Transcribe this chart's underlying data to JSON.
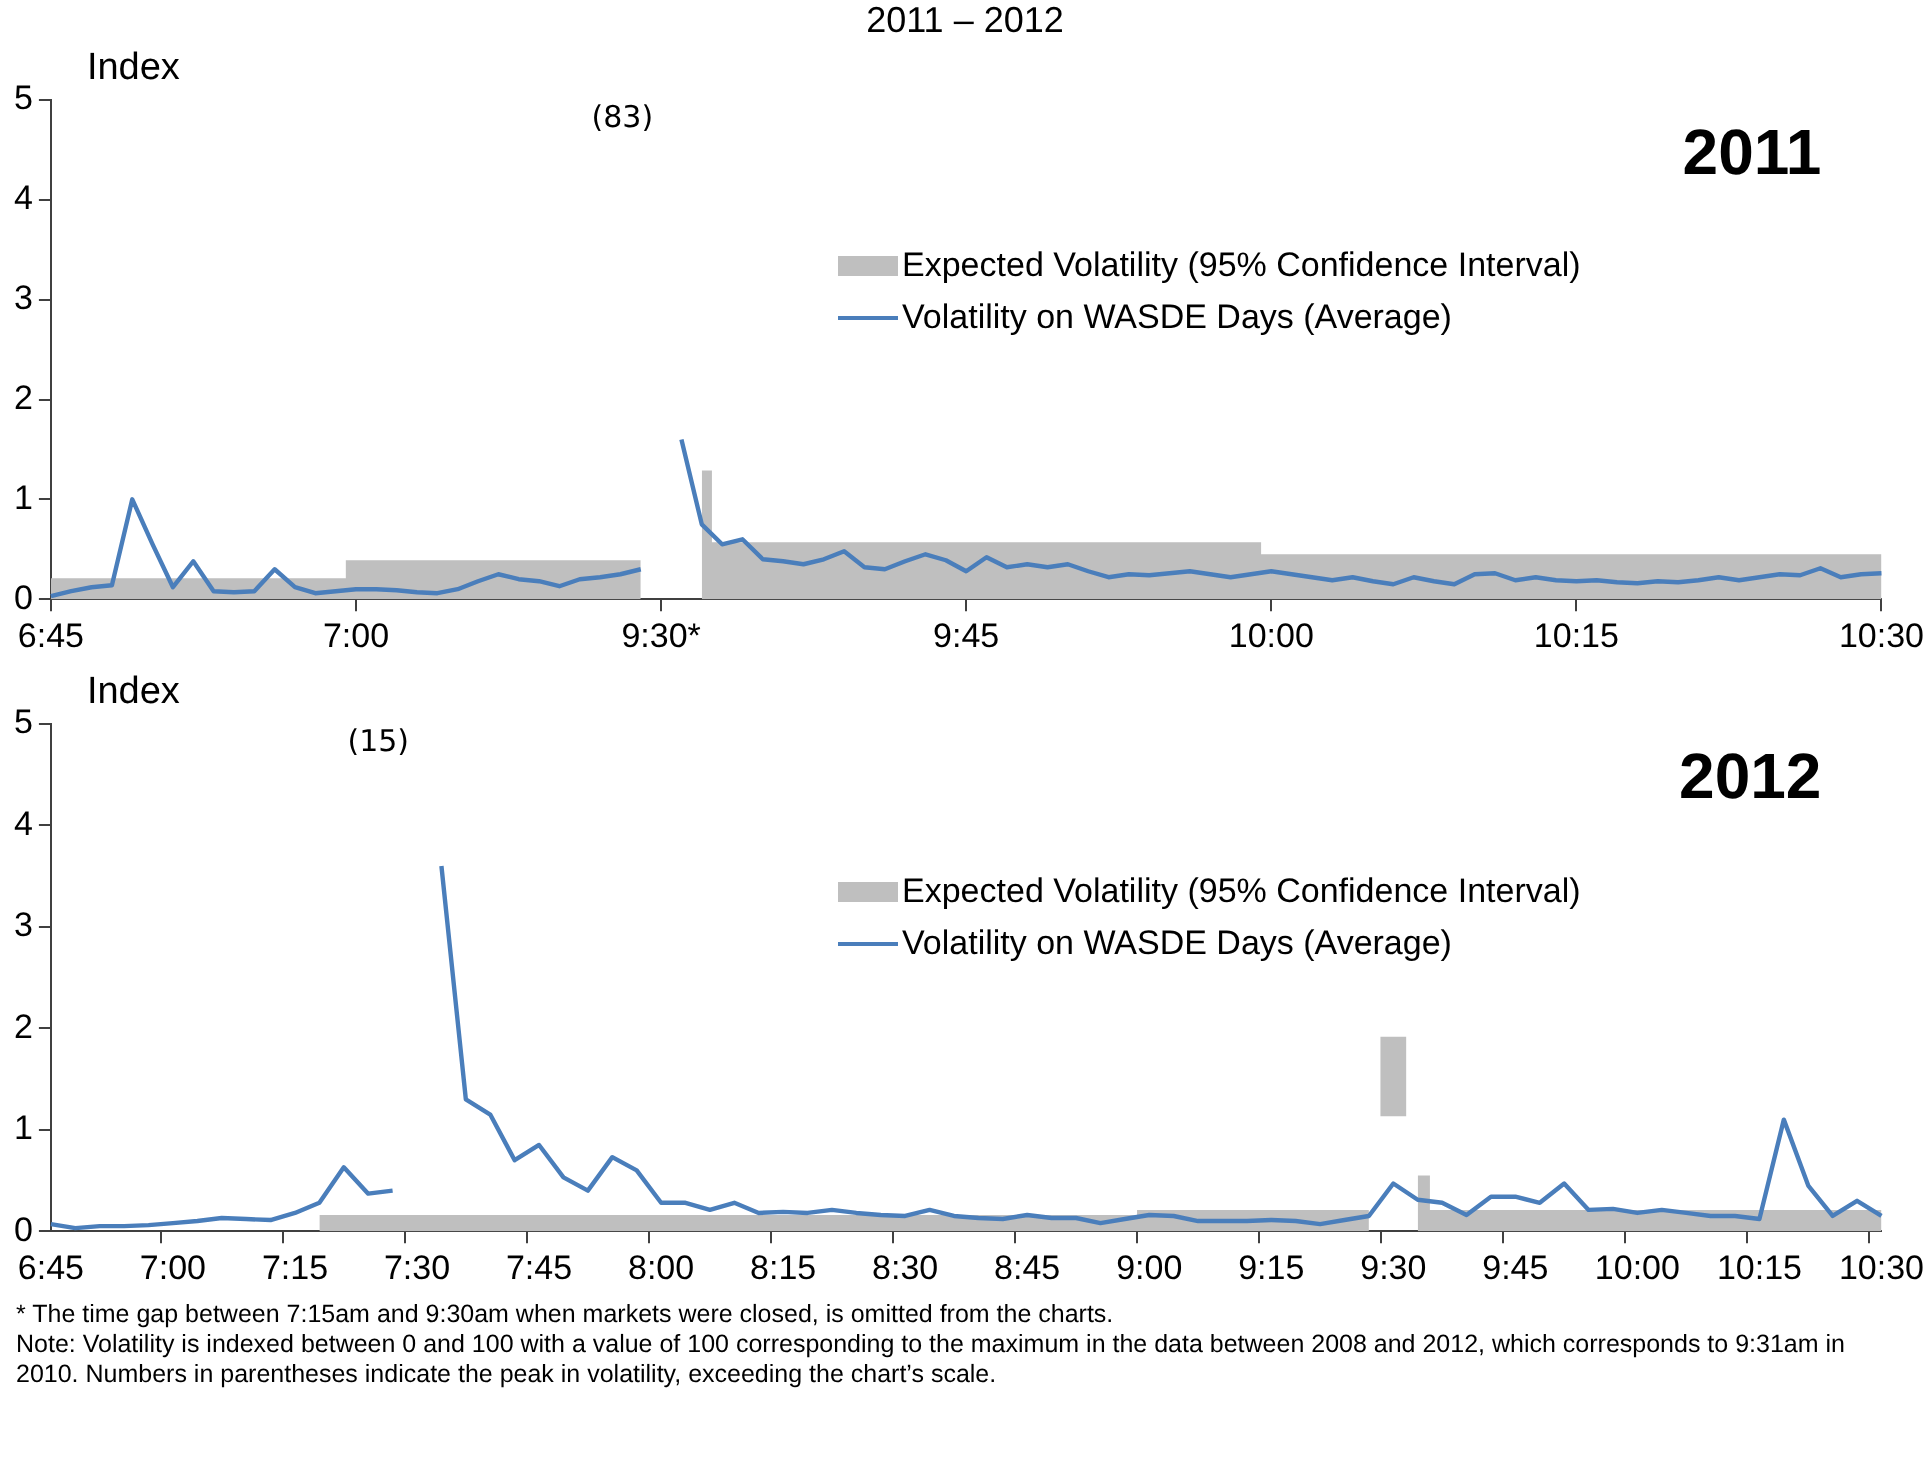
{
  "chart_data": [
    {
      "type": "line",
      "title": "2011 – 2012",
      "subtitle": "2011",
      "ylabel": "Index",
      "categories": [
        "6:45",
        null,
        null,
        null,
        null,
        null,
        null,
        null,
        null,
        null,
        null,
        null,
        null,
        null,
        null,
        "7:00",
        null,
        null,
        null,
        null,
        null,
        null,
        null,
        null,
        null,
        null,
        null,
        null,
        null,
        null,
        "9:30*",
        null,
        null,
        null,
        null,
        null,
        null,
        null,
        null,
        null,
        null,
        null,
        null,
        null,
        null,
        "9:45",
        null,
        null,
        null,
        null,
        null,
        null,
        null,
        null,
        null,
        null,
        null,
        null,
        null,
        null,
        "10:00",
        null,
        null,
        null,
        null,
        null,
        null,
        null,
        null,
        null,
        null,
        null,
        null,
        null,
        null,
        "10:15",
        null,
        null,
        null,
        null,
        null,
        null,
        null,
        null,
        null,
        null,
        null,
        null,
        null,
        null,
        "10:30"
      ],
      "series": [
        {
          "name": "Expected Volatility (95% Confidence Interval)",
          "type": "area",
          "color": "#bfbfbf",
          "values": [
            0.21,
            0.21,
            0.21,
            0.21,
            0.21,
            0.21,
            0.21,
            0.21,
            0.21,
            0.21,
            0.21,
            0.21,
            0.21,
            0.21,
            0.21,
            0.39,
            0.39,
            0.39,
            0.39,
            0.39,
            0.39,
            0.39,
            0.39,
            0.39,
            0.39,
            0.39,
            0.39,
            0.39,
            0.39,
            0.39,
            null,
            null,
            1.29,
            0.57,
            0.57,
            0.57,
            0.57,
            0.57,
            0.57,
            0.57,
            0.57,
            0.57,
            0.57,
            0.57,
            0.57,
            0.57,
            0.57,
            0.57,
            0.57,
            0.57,
            0.57,
            0.57,
            0.57,
            0.57,
            0.57,
            0.57,
            0.57,
            0.57,
            0.57,
            0.57,
            0.45,
            0.45,
            0.45,
            0.45,
            0.45,
            0.45,
            0.45,
            0.45,
            0.45,
            0.45,
            0.45,
            0.45,
            0.45,
            0.45,
            0.45,
            0.45,
            0.45,
            0.45,
            0.45,
            0.45,
            0.45,
            0.45,
            0.45,
            0.45,
            0.45,
            0.45,
            0.45,
            0.45,
            0.45,
            0.45,
            0.45
          ]
        },
        {
          "name": "Volatility on WASDE Days (Average)",
          "color": "#4a7ebb",
          "values": [
            0.03,
            0.08,
            0.12,
            0.14,
            1.0,
            0.55,
            0.12,
            0.38,
            0.08,
            0.07,
            0.08,
            0.3,
            0.12,
            0.06,
            0.08,
            0.1,
            0.1,
            0.09,
            0.07,
            0.06,
            0.1,
            0.18,
            0.25,
            0.2,
            0.18,
            0.13,
            0.2,
            0.22,
            0.25,
            0.3,
            null,
            1.6,
            0.75,
            0.55,
            0.6,
            0.4,
            0.38,
            0.35,
            0.4,
            0.48,
            0.32,
            0.3,
            0.38,
            0.45,
            0.39,
            0.28,
            0.42,
            0.32,
            0.35,
            0.32,
            0.35,
            0.28,
            0.22,
            0.25,
            0.24,
            0.26,
            0.28,
            0.25,
            0.22,
            0.25,
            0.28,
            0.25,
            0.22,
            0.19,
            0.22,
            0.18,
            0.15,
            0.22,
            0.18,
            0.15,
            0.25,
            0.26,
            0.19,
            0.22,
            0.19,
            0.18,
            0.19,
            0.17,
            0.16,
            0.18,
            0.17,
            0.19,
            0.22,
            0.19,
            0.22,
            0.25,
            0.24,
            0.31,
            0.22,
            0.25,
            0.26
          ]
        }
      ],
      "ylim": [
        0,
        5
      ],
      "yticks": [
        0,
        1,
        2,
        3,
        4,
        5
      ],
      "grid": false,
      "legend": "top right",
      "marker": "none",
      "line_style": "solid",
      "annotations": [
        "(83)"
      ]
    },
    {
      "type": "line",
      "subtitle": "2012",
      "ylabel": "Index",
      "categories": [
        "6:45",
        null,
        null,
        null,
        null,
        "7:00",
        null,
        null,
        null,
        null,
        "7:15",
        null,
        null,
        null,
        null,
        "7:30",
        null,
        null,
        null,
        null,
        "7:45",
        null,
        null,
        null,
        null,
        "8:00",
        null,
        null,
        null,
        null,
        "8:15",
        null,
        null,
        null,
        null,
        "8:30",
        null,
        null,
        null,
        null,
        "8:45",
        null,
        null,
        null,
        null,
        "9:00",
        null,
        null,
        null,
        null,
        "9:15",
        null,
        null,
        null,
        null,
        "9:30",
        null,
        null,
        null,
        null,
        "9:45",
        null,
        null,
        null,
        null,
        "10:00",
        null,
        null,
        null,
        null,
        "10:15",
        null,
        null,
        null,
        null,
        "10:30"
      ],
      "series": [
        {
          "name": "Expected Volatility (95% Confidence Interval)",
          "type": "area",
          "color": "#bfbfbf",
          "values": [
            null,
            null,
            null,
            null,
            null,
            null,
            null,
            null,
            null,
            null,
            null,
            0.16,
            0.16,
            0.16,
            0.16,
            0.16,
            0.16,
            0.16,
            0.16,
            0.16,
            0.16,
            0.16,
            0.16,
            0.16,
            0.16,
            0.16,
            0.16,
            0.16,
            0.16,
            0.16,
            0.16,
            0.16,
            0.16,
            0.16,
            0.16,
            0.16,
            0.16,
            0.16,
            0.16,
            0.16,
            0.16,
            0.16,
            0.16,
            0.16,
            0.16,
            0.21,
            0.21,
            0.21,
            0.21,
            0.21,
            0.21,
            0.21,
            0.21,
            0.21,
            0.21,
            null,
            0.55,
            0.21,
            0.21,
            0.21,
            0.21,
            0.21,
            0.21,
            0.21,
            0.21,
            0.21,
            0.21,
            0.21,
            0.21,
            0.21,
            0.21,
            0.21,
            0.21,
            0.21,
            0.21,
            0.21
          ]
        },
        {
          "type": "bar",
          "color": "#bfbfbf",
          "values": [
            null,
            null,
            null,
            null,
            null,
            null,
            null,
            null,
            null,
            null,
            null,
            null,
            null,
            null,
            null,
            null,
            null,
            null,
            null,
            null,
            null,
            null,
            null,
            null,
            null,
            null,
            null,
            null,
            null,
            null,
            null,
            null,
            null,
            null,
            null,
            null,
            null,
            null,
            null,
            null,
            null,
            null,
            null,
            null,
            null,
            null,
            null,
            null,
            null,
            null,
            null,
            null,
            null,
            null,
            null,
            0.77,
            null,
            null,
            null,
            null,
            null,
            null,
            null,
            null,
            null,
            null,
            null,
            null,
            null,
            null,
            null,
            null,
            null,
            null,
            null,
            null
          ],
          "base": [
            null,
            null,
            null,
            null,
            null,
            null,
            null,
            null,
            null,
            null,
            null,
            null,
            null,
            null,
            null,
            null,
            null,
            null,
            null,
            null,
            null,
            null,
            null,
            null,
            null,
            null,
            null,
            null,
            null,
            null,
            null,
            null,
            null,
            null,
            null,
            null,
            null,
            null,
            null,
            null,
            null,
            null,
            null,
            null,
            null,
            null,
            null,
            null,
            null,
            null,
            null,
            null,
            null,
            null,
            null,
            1.14,
            null,
            null,
            null,
            null,
            null,
            null,
            null,
            null,
            null,
            null,
            null,
            null,
            null,
            null,
            null,
            null,
            null,
            null,
            null,
            null
          ]
        },
        {
          "name": "Volatility on WASDE Days (Average)",
          "color": "#4a7ebb",
          "values": [
            0.07,
            0.03,
            0.05,
            0.05,
            0.06,
            0.08,
            0.1,
            0.13,
            0.12,
            0.11,
            0.18,
            0.28,
            0.63,
            0.37,
            0.4,
            null,
            3.6,
            1.3,
            1.15,
            0.7,
            0.85,
            0.53,
            0.4,
            0.73,
            0.6,
            0.28,
            0.28,
            0.21,
            0.28,
            0.18,
            0.19,
            0.18,
            0.21,
            0.18,
            0.16,
            0.15,
            0.21,
            0.15,
            0.13,
            0.12,
            0.16,
            0.13,
            0.13,
            0.08,
            0.12,
            0.16,
            0.15,
            0.1,
            0.1,
            0.1,
            0.11,
            0.1,
            0.07,
            0.11,
            0.15,
            0.47,
            0.31,
            0.28,
            0.16,
            0.34,
            0.34,
            0.28,
            0.47,
            0.21,
            0.22,
            0.18,
            0.21,
            0.18,
            0.15,
            0.15,
            0.12,
            1.1,
            0.45,
            0.15,
            0.3,
            0.15
          ]
        }
      ],
      "ylim": [
        0,
        5
      ],
      "yticks": [
        0,
        1,
        2,
        3,
        4,
        5
      ],
      "grid": false,
      "legend": "top right",
      "marker": "none",
      "line_style": "solid",
      "annotations": [
        "(15)",
        "* The time gap between 7:15am and 9:30am when markets were closed, is omitted from the charts.",
        "Note: Volatility is indexed between 0 and 100 with a value of 100 corresponding to the maximum in the data between 2008 and 2012, which corresponds to 9:31am in 2010. Numbers in parentheses indicate the peak in volatility, exceeding the chart’s scale."
      ]
    }
  ]
}
